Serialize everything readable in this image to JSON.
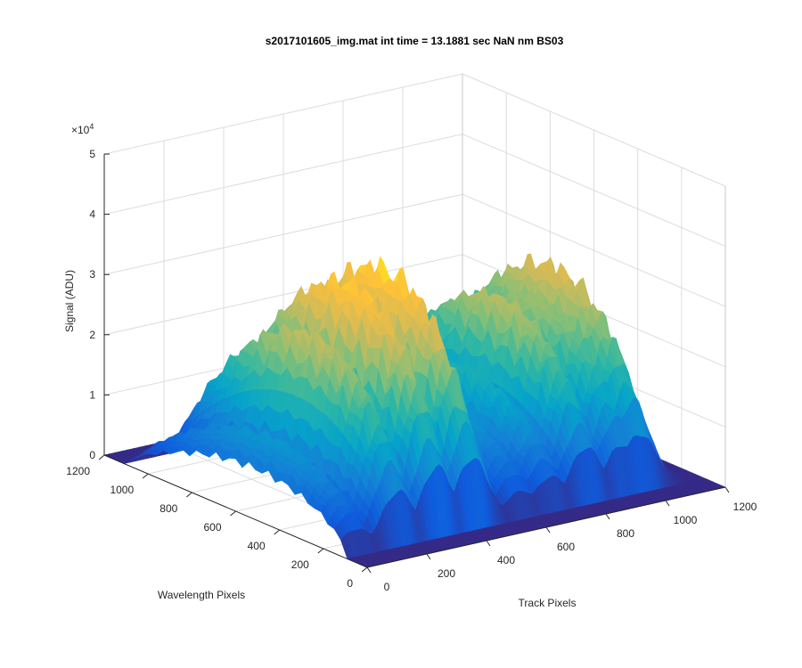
{
  "chart_data": {
    "type": "surface",
    "title": "s2017101605_img.mat int time = 13.1881 sec  NaN nm BS03",
    "xlabel": "Track Pixels",
    "ylabel": "Wavelength Pixels",
    "zlabel": "Signal (ADU)",
    "z_exponent_label": "×10",
    "z_exponent_power": "4",
    "xlim": [
      0,
      1200
    ],
    "ylim": [
      0,
      1200
    ],
    "zlim": [
      0,
      50000
    ],
    "x_ticks": [
      "0",
      "200",
      "400",
      "600",
      "800",
      "1000",
      "1200"
    ],
    "y_ticks": [
      "0",
      "200",
      "400",
      "600",
      "800",
      "1000",
      "1200"
    ],
    "z_ticks": [
      "0",
      "1",
      "2",
      "3",
      "4",
      "5"
    ],
    "grid": true,
    "colormap": "parula",
    "colors": [
      "#352a87",
      "#0f5cdd",
      "#1481d6",
      "#06a4ca",
      "#2eb7a4",
      "#87bf77",
      "#d1bb59",
      "#fdc03a",
      "#f9fb0e"
    ],
    "series": [
      {
        "x": 50,
        "peak": 14000
      },
      {
        "x": 190,
        "peak": 31000
      },
      {
        "x": 320,
        "peak": 38000
      },
      {
        "x": 440,
        "peak": 39000
      },
      {
        "x": 600,
        "peak": 15000
      },
      {
        "x": 700,
        "peak": 19000
      },
      {
        "x": 820,
        "peak": 30000
      },
      {
        "x": 940,
        "peak": 28000
      },
      {
        "x": 1000,
        "peak": 33000
      }
    ]
  }
}
